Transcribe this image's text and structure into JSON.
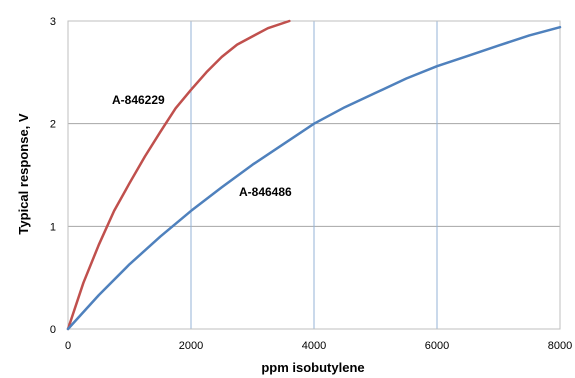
{
  "chart_data": {
    "type": "line",
    "title": "",
    "xlabel": "ppm isobutylene",
    "ylabel": "Typical response, V",
    "xlim": [
      0,
      8000
    ],
    "ylim": [
      0,
      3
    ],
    "x_ticks": [
      0,
      2000,
      4000,
      6000,
      8000
    ],
    "y_ticks": [
      0,
      1,
      2,
      3
    ],
    "grid": true,
    "legend": "none",
    "series": [
      {
        "name": "A-846229",
        "color": "#c0504d",
        "points": [
          [
            0,
            0
          ],
          [
            250,
            0.45
          ],
          [
            500,
            0.82
          ],
          [
            750,
            1.15
          ],
          [
            1000,
            1.42
          ],
          [
            1250,
            1.68
          ],
          [
            1500,
            1.92
          ],
          [
            1750,
            2.15
          ],
          [
            2000,
            2.33
          ],
          [
            2250,
            2.5
          ],
          [
            2500,
            2.65
          ],
          [
            2750,
            2.77
          ],
          [
            3000,
            2.85
          ],
          [
            3250,
            2.93
          ],
          [
            3600,
            3.0
          ]
        ]
      },
      {
        "name": "A-846486",
        "color": "#4f81bd",
        "points": [
          [
            0,
            0
          ],
          [
            500,
            0.33
          ],
          [
            1000,
            0.63
          ],
          [
            1500,
            0.9
          ],
          [
            2000,
            1.15
          ],
          [
            2500,
            1.38
          ],
          [
            3000,
            1.6
          ],
          [
            3500,
            1.8
          ],
          [
            4000,
            2.0
          ],
          [
            4500,
            2.16
          ],
          [
            5000,
            2.3
          ],
          [
            5500,
            2.44
          ],
          [
            6000,
            2.56
          ],
          [
            6500,
            2.66
          ],
          [
            7000,
            2.76
          ],
          [
            7500,
            2.86
          ],
          [
            8000,
            2.94
          ]
        ]
      }
    ]
  }
}
